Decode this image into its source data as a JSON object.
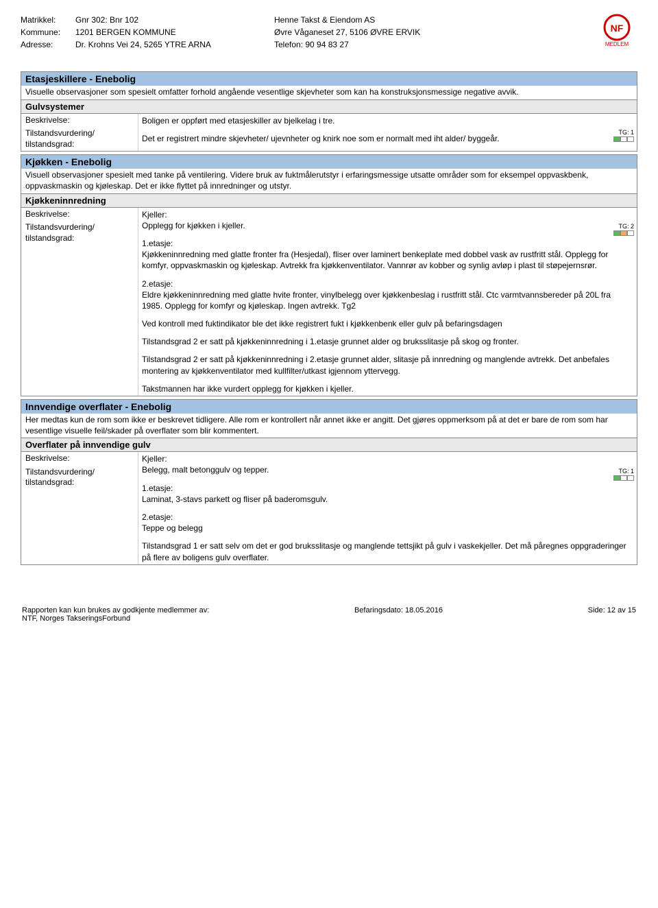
{
  "header": {
    "left": {
      "rows": [
        {
          "label": "Matrikkel:",
          "value": "Gnr 302: Bnr 102"
        },
        {
          "label": "Kommune:",
          "value": "1201 BERGEN KOMMUNE"
        },
        {
          "label": "Adresse:",
          "value": "Dr. Krohns Vei 24, 5265 YTRE ARNA"
        }
      ]
    },
    "right": {
      "lines": [
        "Henne Takst & Eiendom AS",
        "Øvre Våganeset 27, 5106 ØVRE ERVIK",
        "Telefon: 90 94 83 27"
      ]
    },
    "logo_text": "MEDLEM"
  },
  "sections": [
    {
      "title": "Etasjeskillere - Enebolig",
      "intro": "Visuelle observasjoner som spesielt omfatter forhold angående vesentlige skjevheter som kan ha konstruksjonsmessige negative avvik.",
      "subsections": [
        {
          "title": "Gulvsystemer",
          "rows": [
            {
              "label": "Beskrivelse:",
              "paras": [
                "Boligen er oppført med etasjeskiller av bjelkelag i tre.",
                "Det er registrert mindre skjevheter/ ujevnheter  og knirk noe som er normalt med iht alder/ byggeår."
              ]
            },
            {
              "label": "Tilstandsvurdering/ tilstandsgrad:",
              "paras": [],
              "tg": {
                "label": "TG: 1",
                "colors": [
                  "tg-green",
                  "tg-empty",
                  "tg-empty"
                ]
              },
              "merged": true
            }
          ]
        }
      ]
    },
    {
      "title": "Kjøkken - Enebolig",
      "intro": "Visuell observasjoner spesielt med tanke på ventilering. Videre bruk av fuktmålerutstyr i erfaringsmessige utsatte områder som for eksempel oppvaskbenk, oppvaskmaskin og kjøleskap. Det er ikke flyttet på innredninger og utstyr.",
      "subsections": [
        {
          "title": "Kjøkkeninnredning",
          "rows": [
            {
              "label": "Beskrivelse:",
              "paras": [
                "Kjeller:\nOpplegg for kjøkken i kjeller.",
                "1.etasje:\nKjøkkeninnredning med glatte fronter fra (Hesjedal), fliser over laminert benkeplate med dobbel vask av rustfritt stål. Opplegg for komfyr, oppvaskmaskin og kjøleskap. Avtrekk fra kjøkkenventilator. Vannrør av kobber og synlig avløp i plast til støpejernsrør.",
                "2.etasje:\nEldre kjøkkeninnredning med glatte hvite fronter, vinylbelegg over kjøkkenbeslag i rustfritt stål. Ctc varmtvannsbereder på 20L fra 1985. Opplegg for komfyr og kjøleskap. Ingen avtrekk. Tg2",
                "Ved kontroll med fuktindikator ble det ikke registrert fukt i kjøkkenbenk eller gulv på befaringsdagen"
              ]
            },
            {
              "label": "Tilstandsvurdering/ tilstandsgrad:",
              "paras": [
                "Tilstandsgrad 2 er satt på kjøkkeninnredning i 1.etasje grunnet alder og bruksslitasje på skog og fronter.",
                "Tilstandsgrad 2 er satt på kjøkkeninnredning i 2.etasje grunnet alder, slitasje på innredning og manglende avtrekk. Det anbefales montering av kjøkkenventilator med kullfilter/utkast igjennom yttervegg.",
                "Takstmannen har ikke vurdert opplegg for kjøkken i kjeller."
              ],
              "tg": {
                "label": "TG: 2",
                "colors": [
                  "tg-green",
                  "tg-orange",
                  "tg-empty"
                ]
              },
              "merged": true
            }
          ]
        }
      ]
    },
    {
      "title": "Innvendige overflater - Enebolig",
      "intro": "Her medtas kun de rom som ikke er beskrevet tidligere. Alle rom er kontrollert når annet ikke er angitt. Det gjøres oppmerksom på at det er bare de rom som har vesentlige visuelle feil/skader på overflater som blir kommentert.",
      "subsections": [
        {
          "title": "Overflater på innvendige gulv",
          "rows": [
            {
              "label": "Beskrivelse:",
              "paras": [
                "Kjeller:\nBelegg, malt betonggulv og tepper.",
                "1.etasje:\nLaminat, 3-stavs parkett og fliser på baderomsgulv.",
                "2.etasje:\nTeppe og belegg"
              ]
            },
            {
              "label": "Tilstandsvurdering/ tilstandsgrad:",
              "paras": [
                "Tilstandsgrad 1 er satt selv om det er god bruksslitasje og manglende tettsjikt på gulv i vaskekjeller. Det må påregnes oppgraderinger på flere av boligens gulv overflater."
              ],
              "tg": {
                "label": "TG: 1",
                "colors": [
                  "tg-green",
                  "tg-empty",
                  "tg-empty"
                ]
              },
              "merged": true
            }
          ]
        }
      ]
    }
  ],
  "footer": {
    "left": "Rapporten kan kun brukes av godkjente medlemmer av:\nNTF, Norges TakseringsForbund",
    "center": "Befaringsdato: 18.05.2016",
    "right": "Side: 12 av 15"
  },
  "colors": {
    "section_header_bg": "#a3c1e0",
    "subsection_bg": "#e8e8e8",
    "border": "#888888"
  }
}
